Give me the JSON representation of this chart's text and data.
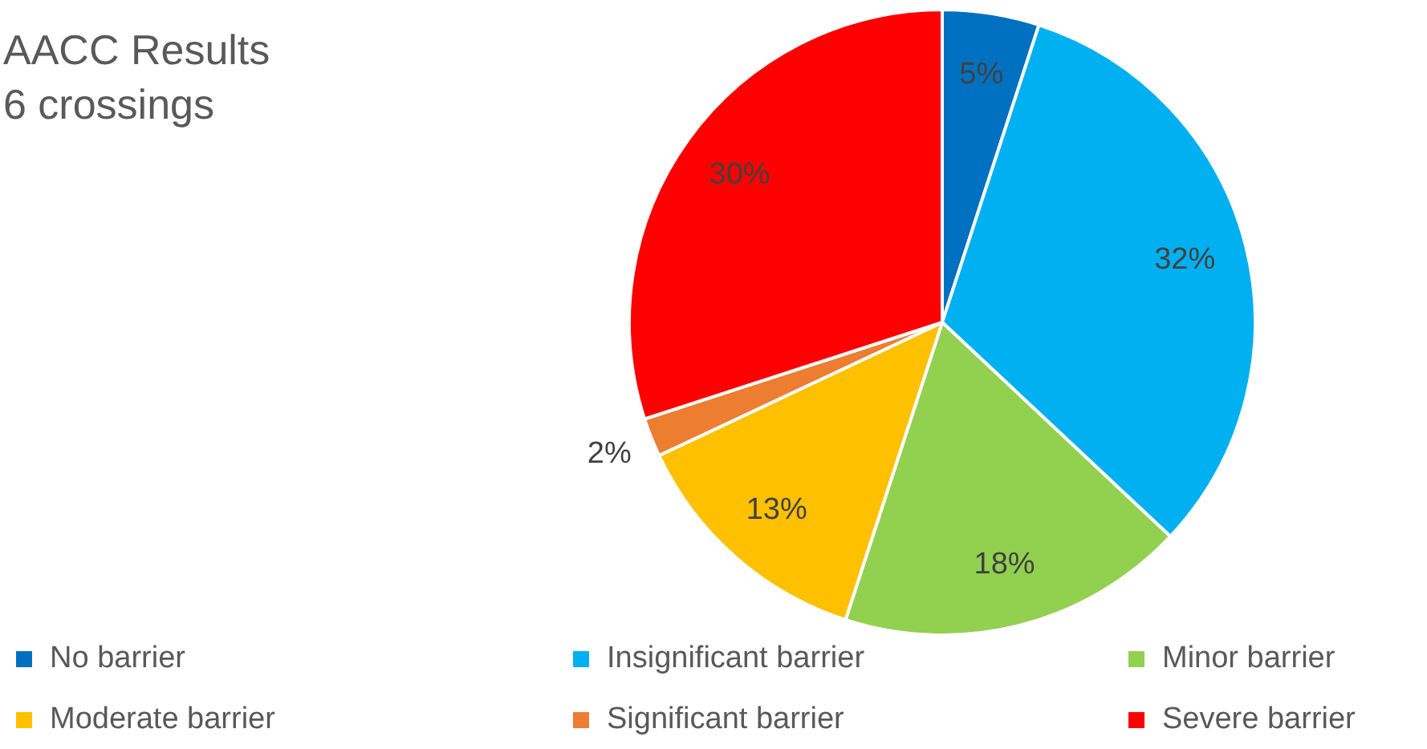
{
  "chart_data": {
    "type": "pie",
    "title": "AACC Results",
    "subtitle": "6 crossings",
    "categories": [
      "No barrier",
      "Insignificant barrier",
      "Minor barrier",
      "Moderate barrier",
      "Significant barrier",
      "Severe barrier"
    ],
    "values": [
      5,
      32,
      18,
      13,
      2,
      30
    ],
    "value_labels": [
      "5%",
      "32%",
      "18%",
      "13%",
      "2%",
      "30%"
    ],
    "colors": [
      "#0070c0",
      "#00b0f0",
      "#92d050",
      "#ffc000",
      "#ed7d31",
      "#ff0000"
    ],
    "legend": "bottom"
  }
}
